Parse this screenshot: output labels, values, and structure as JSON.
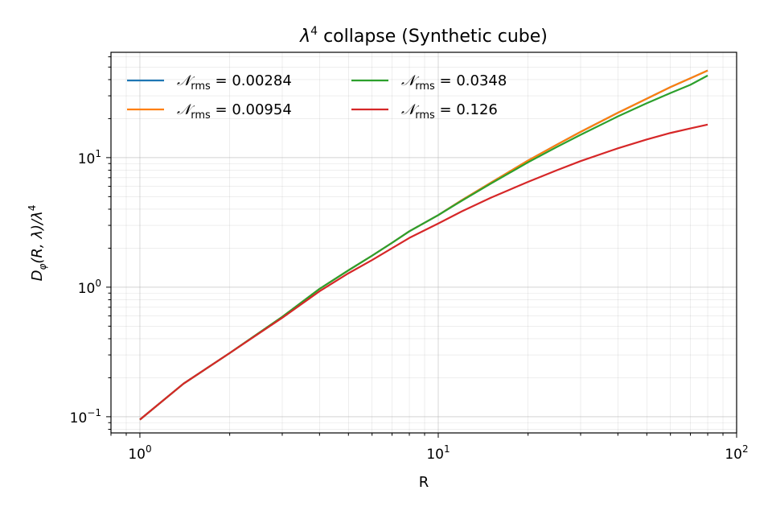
{
  "chart_data": {
    "type": "line",
    "title": "λ⁴ collapse (Synthetic cube)",
    "title_parts": {
      "lead": "λ",
      "exp": "4",
      "rest": " collapse (Synthetic cube)"
    },
    "xlabel": "R",
    "ylabel": "D_φ(R, λ)/λ⁴",
    "ylabel_parts": {
      "lead": "D",
      "sub": "φ",
      "mid": "(R, λ)/λ",
      "exp": "4"
    },
    "x_scale": "log",
    "y_scale": "log",
    "xlim": [
      0.8,
      100
    ],
    "ylim": [
      0.075,
      65
    ],
    "x_ticks": [
      {
        "value": 1,
        "label": "10",
        "exp": "0"
      },
      {
        "value": 10,
        "label": "10",
        "exp": "1"
      },
      {
        "value": 100,
        "label": "10",
        "exp": "2"
      }
    ],
    "y_ticks": [
      {
        "value": 0.1,
        "label": "10",
        "exp": "−1"
      },
      {
        "value": 1,
        "label": "10",
        "exp": "0"
      },
      {
        "value": 10,
        "label": "10",
        "exp": "1"
      }
    ],
    "grid": "major and minor",
    "legend_placement": "top-left, two columns",
    "legend_prefix": "𝒩",
    "legend_sub": "rms",
    "series": [
      {
        "name": "𝒩rms = 0.00284",
        "value_label": " = 0.00284",
        "color": "#1f77b4",
        "x": [
          1,
          1.4,
          2,
          3,
          4,
          5,
          6,
          7,
          8,
          10,
          12,
          15,
          20,
          25,
          30,
          40,
          50,
          60,
          70,
          80
        ],
        "y": [
          0.095,
          0.18,
          0.31,
          0.59,
          0.97,
          1.35,
          1.75,
          2.2,
          2.7,
          3.6,
          4.7,
          6.4,
          9.5,
          12.6,
          15.8,
          22.2,
          28.5,
          35,
          41,
          47
        ]
      },
      {
        "name": "𝒩rms = 0.00954",
        "value_label": " = 0.00954",
        "color": "#ff7f0e",
        "x": [
          1,
          1.4,
          2,
          3,
          4,
          5,
          6,
          7,
          8,
          10,
          12,
          15,
          20,
          25,
          30,
          40,
          50,
          60,
          70,
          80
        ],
        "y": [
          0.095,
          0.18,
          0.31,
          0.59,
          0.97,
          1.35,
          1.75,
          2.2,
          2.7,
          3.6,
          4.7,
          6.4,
          9.5,
          12.6,
          15.8,
          22.2,
          28.5,
          35,
          41,
          47
        ]
      },
      {
        "name": "𝒩rms = 0.0348",
        "value_label": " = 0.0348",
        "color": "#2ca02c",
        "x": [
          1,
          1.4,
          2,
          3,
          4,
          5,
          6,
          7,
          8,
          10,
          12,
          15,
          20,
          25,
          30,
          40,
          50,
          60,
          70,
          80
        ],
        "y": [
          0.095,
          0.18,
          0.31,
          0.59,
          0.97,
          1.35,
          1.75,
          2.2,
          2.7,
          3.6,
          4.65,
          6.3,
          9.2,
          12.1,
          15,
          20.8,
          26.3,
          31.5,
          36.5,
          43
        ]
      },
      {
        "name": "𝒩rms = 0.126",
        "value_label": " = 0.126",
        "color": "#d62728",
        "x": [
          1,
          1.4,
          2,
          3,
          4,
          5,
          6,
          7,
          8,
          10,
          12,
          15,
          20,
          25,
          30,
          40,
          50,
          60,
          70,
          80
        ],
        "y": [
          0.095,
          0.18,
          0.31,
          0.58,
          0.93,
          1.28,
          1.62,
          2.0,
          2.4,
          3.1,
          3.85,
          4.9,
          6.5,
          8.0,
          9.4,
          11.8,
          13.8,
          15.5,
          16.8,
          18
        ]
      }
    ]
  }
}
